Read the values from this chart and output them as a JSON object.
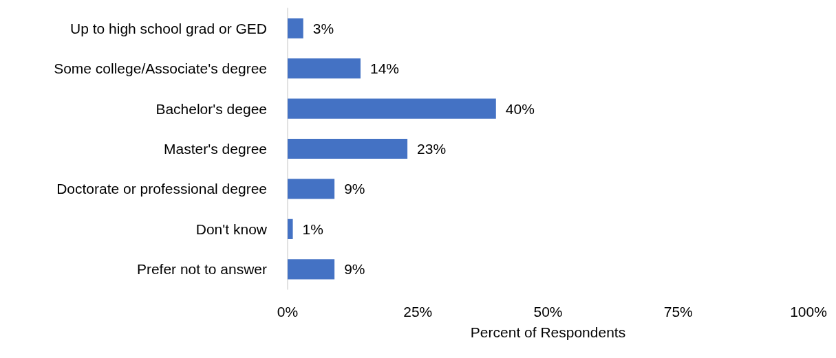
{
  "chart_data": {
    "type": "bar",
    "orientation": "horizontal",
    "xlabel": "Percent of Respondents",
    "categories": [
      "Up to high school grad or GED",
      "Some college/Associate's degree",
      "Bachelor's degee",
      "Master's degree",
      "Doctorate or professional degree",
      "Don't know",
      "Prefer not to answer"
    ],
    "values": [
      3,
      14,
      40,
      23,
      9,
      1,
      9
    ],
    "value_labels": [
      "3%",
      "14%",
      "40%",
      "23%",
      "9%",
      "1%",
      "9%"
    ],
    "color": "#4472c4",
    "xlim": [
      0,
      100
    ],
    "xticks": [
      {
        "value": 0,
        "label": "0%"
      },
      {
        "value": 25,
        "label": "25%"
      },
      {
        "value": 50,
        "label": "50%"
      },
      {
        "value": 75,
        "label": "75%"
      },
      {
        "value": 100,
        "label": "100%"
      }
    ],
    "grid": false
  }
}
